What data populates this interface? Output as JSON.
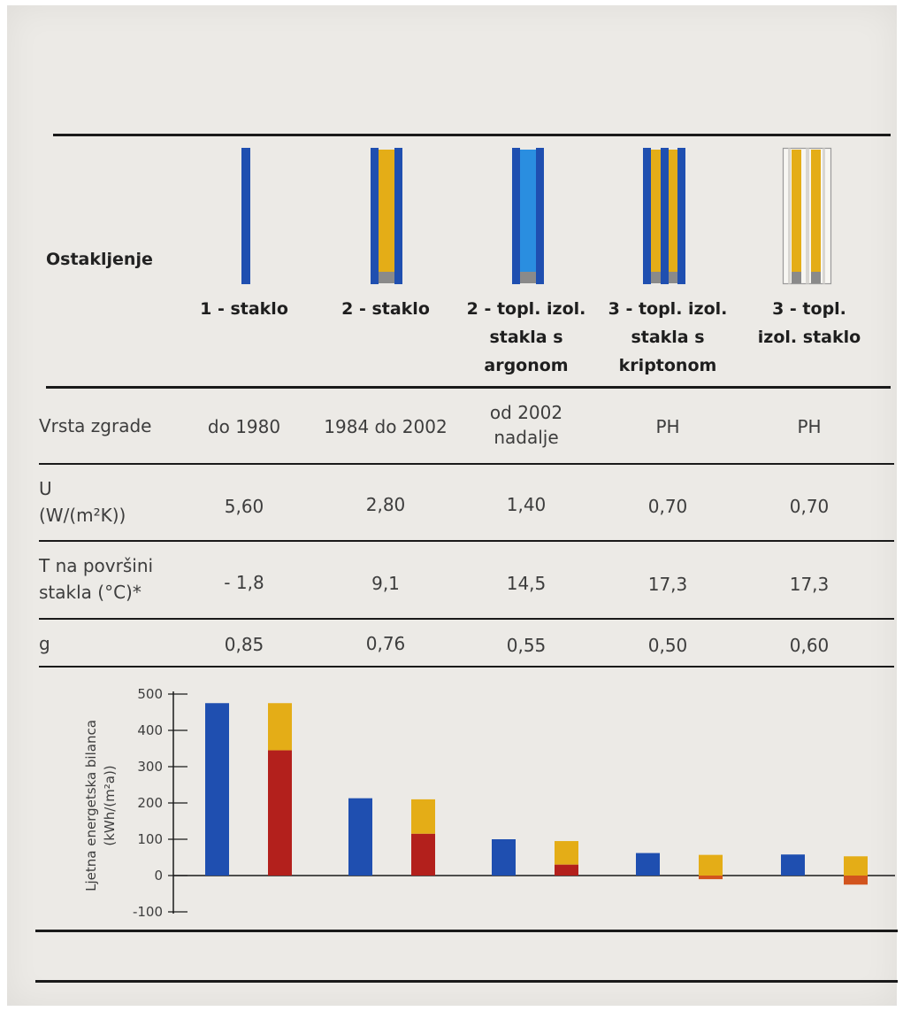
{
  "table": {
    "header_label": "Ostakljenje",
    "columns": [
      {
        "title_lines": [
          "1 - staklo"
        ]
      },
      {
        "title_lines": [
          "2 - staklo"
        ]
      },
      {
        "title_lines": [
          "2 - topl. izol.",
          "stakla s",
          "argonom"
        ]
      },
      {
        "title_lines": [
          "3 - topl. izol.",
          "stakla s",
          "kriptonom"
        ]
      },
      {
        "title_lines": [
          "3 - topl.",
          "izol. staklo"
        ]
      }
    ],
    "rows": [
      {
        "label_lines": [
          "Vrsta zgrade"
        ],
        "cells": [
          [
            "do 1980"
          ],
          [
            "1984 do 2002"
          ],
          [
            "od 2002",
            "nadalje"
          ],
          [
            "PH"
          ],
          [
            "PH"
          ]
        ]
      },
      {
        "label_lines": [
          "U",
          "(W/(m²K))"
        ],
        "cells": [
          [
            "5,60"
          ],
          [
            "2,80"
          ],
          [
            "1,40"
          ],
          [
            "0,70"
          ],
          [
            "0,70"
          ]
        ]
      },
      {
        "label_lines": [
          "T na površini",
          "stakla (°C)*"
        ],
        "cells": [
          [
            "- 1,8"
          ],
          [
            "9,1"
          ],
          [
            "14,5"
          ],
          [
            "17,3"
          ],
          [
            "17,3"
          ]
        ]
      },
      {
        "label_lines": [
          "g"
        ],
        "cells": [
          [
            "0,85"
          ],
          [
            "0,76"
          ],
          [
            "0,55"
          ],
          [
            "0,50"
          ],
          [
            "0,60"
          ]
        ]
      }
    ]
  },
  "glazing_icons": [
    {
      "panes": 1,
      "frame": "blue",
      "fill": "none"
    },
    {
      "panes": 2,
      "frame": "blue",
      "fill": "yellow"
    },
    {
      "panes": 2,
      "frame": "blue",
      "fill": "lightblue"
    },
    {
      "panes": 3,
      "frame": "blue",
      "fill": "yellow"
    },
    {
      "panes": 3,
      "frame": "white",
      "fill": "yellow"
    }
  ],
  "colors": {
    "blue": "#1f4fb0",
    "light_blue": "#2a8ee0",
    "yellow": "#e4ad17",
    "red": "#b3201c",
    "gray": "#8a8a8a",
    "frame_white": "#f7f6f2",
    "ink": "#1a1a1a",
    "text": "#3d3d3d"
  },
  "chart_data": {
    "type": "bar",
    "ylabel": "Ljetna energetska bilanca",
    "ylabel_unit": "(kWh/(m²a))",
    "ylim": [
      -100,
      500
    ],
    "yticks": [
      "500",
      "400",
      "300",
      "200",
      "100",
      "0",
      "-100"
    ],
    "ytick_values": [
      500,
      400,
      300,
      200,
      100,
      0,
      -100
    ],
    "groups": [
      {
        "blue": 475,
        "stack_red": 345,
        "stack_yellow": 475
      },
      {
        "blue": 213,
        "stack_red": 115,
        "stack_yellow": 210
      },
      {
        "blue": 100,
        "stack_red": 30,
        "stack_yellow": 95
      },
      {
        "blue": 62,
        "stack_red": -10,
        "stack_yellow": 57
      },
      {
        "blue": 58,
        "stack_red": -25,
        "stack_yellow": 53
      }
    ]
  }
}
